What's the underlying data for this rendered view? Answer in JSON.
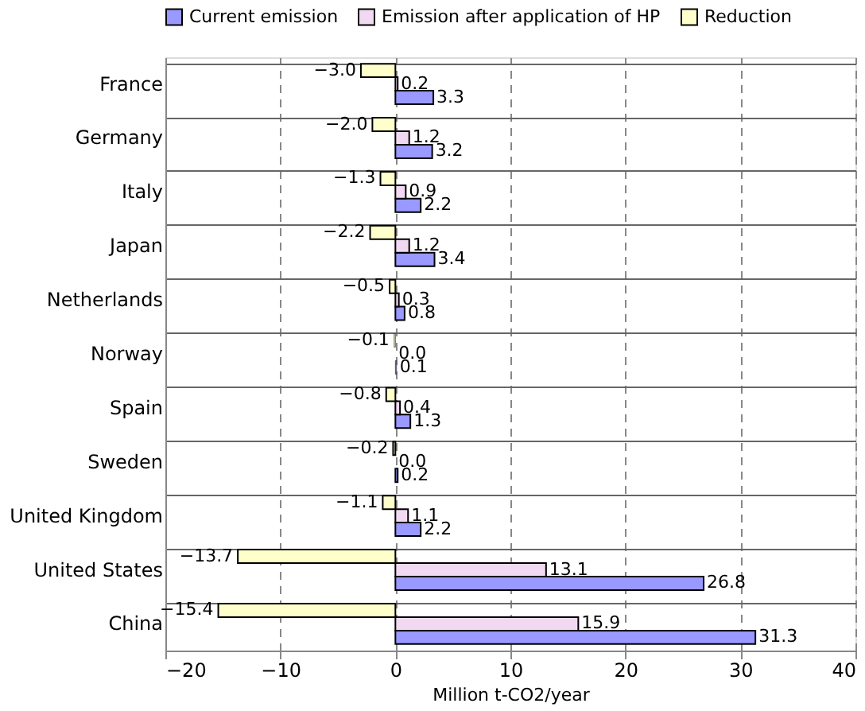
{
  "chart_data": {
    "type": "bar",
    "orientation": "horizontal",
    "xlabel": "Million t-CO2/year",
    "categories": [
      "France",
      "Germany",
      "Italy",
      "Japan",
      "Netherlands",
      "Norway",
      "Spain",
      "Sweden",
      "United Kingdom",
      "United States",
      "China"
    ],
    "series": [
      {
        "name": "Current emission",
        "color": "#9999ff",
        "values": [
          3.3,
          3.2,
          2.2,
          3.4,
          0.8,
          0.1,
          1.3,
          0.2,
          2.2,
          26.8,
          31.3
        ],
        "value_labels": [
          "3.3",
          "3.2",
          "2.2",
          "3.4",
          "0.8",
          "0.1",
          "1.3",
          "0.2",
          "2.2",
          "26.8",
          "31.3"
        ]
      },
      {
        "name": "Emission after application of HP",
        "color": "#f2d9f2",
        "values": [
          0.2,
          1.2,
          0.9,
          1.2,
          0.3,
          0.0,
          0.4,
          0.0,
          1.1,
          13.1,
          15.9
        ],
        "value_labels": [
          "0.2",
          "1.2",
          "0.9",
          "1.2",
          "0.3",
          "0.0",
          "0.4",
          "0.0",
          "1.1",
          "13.1",
          "15.9"
        ]
      },
      {
        "name": "Reduction",
        "color": "#ffffcc",
        "values": [
          -3.0,
          -2.0,
          -1.3,
          -2.2,
          -0.5,
          -0.1,
          -0.8,
          -0.2,
          -1.1,
          -13.7,
          -15.4
        ],
        "value_labels": [
          "−3.0",
          "−2.0",
          "−1.3",
          "−2.2",
          "−0.5",
          "−0.1",
          "−0.8",
          "−0.2",
          "−1.1",
          "−13.7",
          "−15.4"
        ]
      }
    ],
    "xlim": [
      -20,
      40
    ],
    "xticks": [
      -20,
      -10,
      0,
      10,
      20,
      30,
      40
    ],
    "grid": true,
    "legend": "top"
  }
}
